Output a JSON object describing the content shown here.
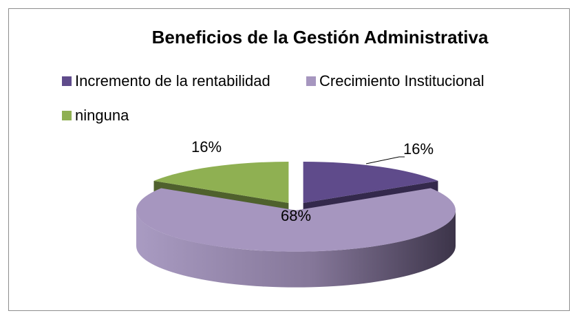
{
  "chart_data": {
    "type": "pie3d",
    "title": "Beneficios de la Gestión Administrativa",
    "categories": [
      "Incremento de la rentabilidad",
      "Crecimiento Institucional",
      "ninguna"
    ],
    "values": [
      16,
      68,
      16
    ],
    "value_labels": [
      "16%",
      "68%",
      "16%"
    ],
    "colors": [
      "#5f4b8b",
      "#a696bf",
      "#8fb052"
    ],
    "legend": "top"
  }
}
